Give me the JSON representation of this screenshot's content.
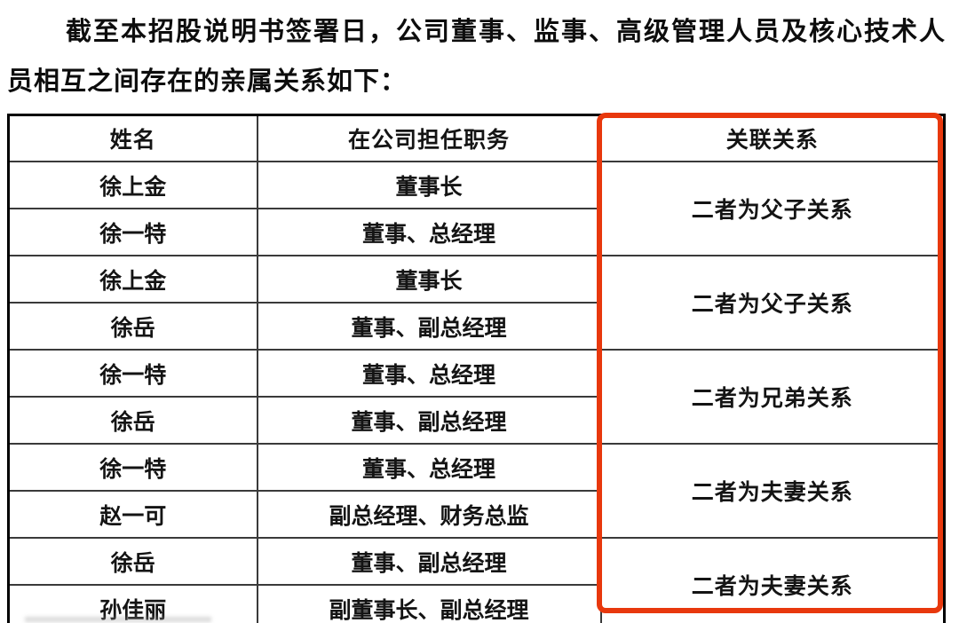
{
  "intro": {
    "lines": [
      "截至本招股说明书签署日，公司董事、监事、高级管理人员及核心技术人",
      "员相互之间存在的亲属关系如下："
    ]
  },
  "table": {
    "headers": [
      "姓名",
      "在公司担任职务",
      "关联关系"
    ],
    "highlight_color": "#e8380d",
    "groups": [
      {
        "relationship": "二者为父子关系",
        "members": [
          {
            "name": "徐上金",
            "position": "董事长"
          },
          {
            "name": "徐一特",
            "position": "董事、总经理"
          }
        ]
      },
      {
        "relationship": "二者为父子关系",
        "members": [
          {
            "name": "徐上金",
            "position": "董事长"
          },
          {
            "name": "徐岳",
            "position": "董事、副总经理"
          }
        ]
      },
      {
        "relationship": "二者为兄弟关系",
        "members": [
          {
            "name": "徐一特",
            "position": "董事、总经理"
          },
          {
            "name": "徐岳",
            "position": "董事、副总经理"
          }
        ]
      },
      {
        "relationship": "二者为夫妻关系",
        "members": [
          {
            "name": "徐一特",
            "position": "董事、总经理"
          },
          {
            "name": "赵一可",
            "position": "副总经理、财务总监"
          }
        ]
      },
      {
        "relationship": "二者为夫妻关系",
        "members": [
          {
            "name": "徐岳",
            "position": "董事、副总经理"
          },
          {
            "name": "孙佳丽",
            "position": "副董事长、副总经理"
          }
        ]
      }
    ]
  }
}
